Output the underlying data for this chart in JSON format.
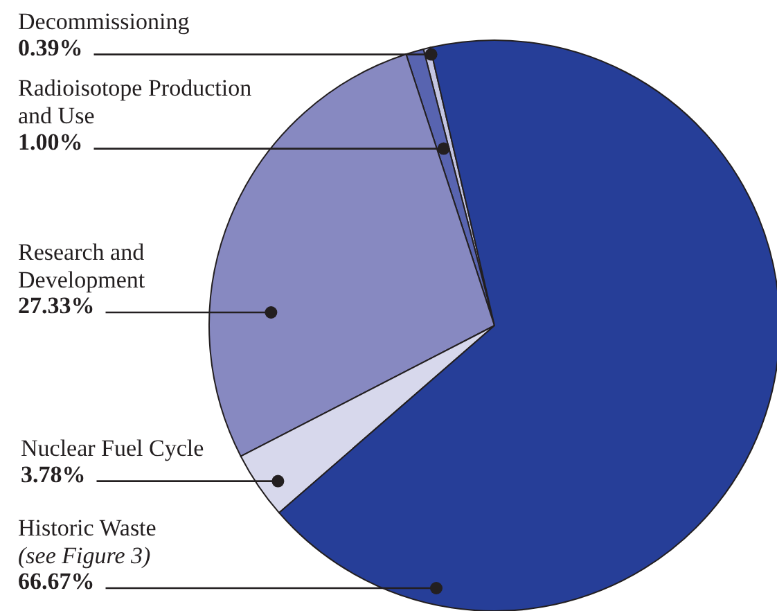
{
  "chart_data": {
    "type": "pie",
    "categories": [
      "Decommissioning",
      "Radioisotope Production and Use",
      "Research and Development",
      "Nuclear Fuel Cycle",
      "Historic Waste (see Figure 3)"
    ],
    "values": [
      0.39,
      1.0,
      27.33,
      3.78,
      66.67
    ],
    "value_labels": [
      "0.39%",
      "1.00%",
      "27.33%",
      "3.78%",
      "66.67%"
    ],
    "colors": [
      "#c3c5e2",
      "#5864b0",
      "#8789c1",
      "#d7d8ec",
      "#263e98"
    ]
  }
}
